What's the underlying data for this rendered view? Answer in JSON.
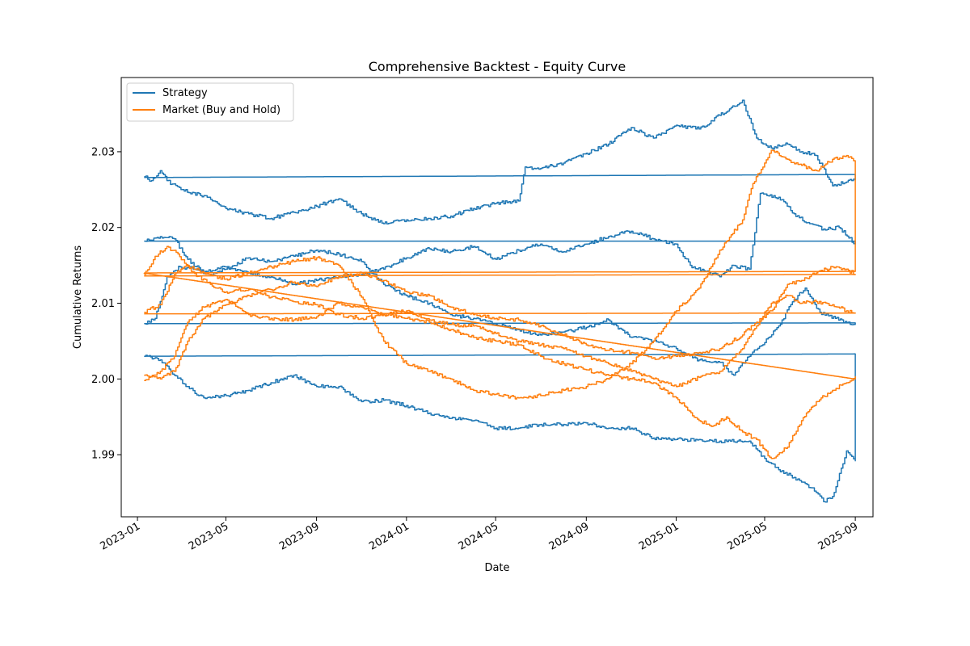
{
  "chart_data": {
    "type": "line",
    "title": "Comprehensive Backtest - Equity Curve",
    "xlabel": "Date",
    "ylabel": "Cumulative Returns",
    "x_range": [
      "2022-12-10",
      "2025-09-25"
    ],
    "ylim": [
      1.9818,
      2.0398
    ],
    "x_ticks": [
      "2023-01",
      "2023-05",
      "2023-09",
      "2024-01",
      "2024-05",
      "2024-09",
      "2025-01",
      "2025-05",
      "2025-09"
    ],
    "y_ticks": [
      1.99,
      2.0,
      2.01,
      2.02,
      2.03
    ],
    "grid": false,
    "legend_position": "upper-left",
    "series": [
      {
        "name": "Strategy",
        "color": "#1f77b4",
        "segments": [
          {
            "x": [
              "2023-01-10",
              "2023-01-20",
              "2023-02-01",
              "2023-02-10",
              "2023-03-01",
              "2023-04-01",
              "2023-05-01",
              "2023-06-01",
              "2023-07-01",
              "2023-08-01",
              "2023-09-01",
              "2023-10-01",
              "2023-11-01",
              "2023-12-01",
              "2024-01-01",
              "2024-02-01",
              "2024-03-01",
              "2024-04-01",
              "2024-05-01",
              "2024-06-01",
              "2024-06-10",
              "2024-07-01",
              "2024-08-01",
              "2024-09-01",
              "2024-10-01",
              "2024-11-01",
              "2024-12-01",
              "2025-01-01",
              "2025-02-01",
              "2025-03-01",
              "2025-04-01",
              "2025-04-20",
              "2025-05-10",
              "2025-06-01",
              "2025-06-20",
              "2025-07-10",
              "2025-08-01",
              "2025-08-20",
              "2025-09-01",
              "2025-09-01",
              "2023-01-10"
            ],
            "y": [
              2.0267,
              2.0262,
              2.0275,
              2.0262,
              2.025,
              2.0242,
              2.0225,
              2.0218,
              2.0212,
              2.022,
              2.0228,
              2.0238,
              2.0218,
              2.0205,
              2.021,
              2.0212,
              2.0215,
              2.0225,
              2.0232,
              2.0235,
              2.028,
              2.0278,
              2.0285,
              2.0298,
              2.031,
              2.0332,
              2.0318,
              2.0335,
              2.033,
              2.0348,
              2.0368,
              2.0318,
              2.0305,
              2.031,
              2.03,
              2.0295,
              2.0255,
              2.026,
              2.0263,
              2.027,
              2.0266
            ]
          },
          {
            "x": [
              "2023-01-10",
              "2023-02-01",
              "2023-02-20",
              "2023-03-10",
              "2023-04-01",
              "2023-05-01",
              "2023-06-01",
              "2023-07-01",
              "2023-08-01",
              "2023-09-01",
              "2023-10-01",
              "2023-11-01",
              "2023-12-01",
              "2024-01-01",
              "2024-02-01",
              "2024-03-01",
              "2024-04-01",
              "2024-05-01",
              "2024-06-01",
              "2024-07-01",
              "2024-08-01",
              "2024-09-01",
              "2024-10-01",
              "2024-11-01",
              "2024-12-01",
              "2025-01-01",
              "2025-01-20",
              "2025-02-10",
              "2025-03-01",
              "2025-03-20",
              "2025-04-10",
              "2025-04-25",
              "2025-05-20",
              "2025-06-10",
              "2025-07-01",
              "2025-07-20",
              "2025-08-10",
              "2025-09-01",
              "2025-09-01",
              "2023-01-10"
            ],
            "y": [
              2.0182,
              2.0188,
              2.0185,
              2.0158,
              2.014,
              2.0148,
              2.014,
              2.0135,
              2.0125,
              2.013,
              2.0135,
              2.0138,
              2.0145,
              2.016,
              2.0172,
              2.0168,
              2.0175,
              2.0158,
              2.017,
              2.0178,
              2.0168,
              2.0178,
              2.0188,
              2.0195,
              2.0185,
              2.0178,
              2.015,
              2.0142,
              2.0135,
              2.015,
              2.0145,
              2.0245,
              2.024,
              2.0218,
              2.0205,
              2.0198,
              2.02,
              2.0178,
              2.0182,
              2.0182
            ]
          },
          {
            "x": [
              "2023-01-10",
              "2023-01-25",
              "2023-02-10",
              "2023-02-28",
              "2023-03-20",
              "2023-04-10",
              "2023-05-01",
              "2023-06-01",
              "2023-07-01",
              "2023-08-01",
              "2023-09-01",
              "2023-10-01",
              "2023-11-01",
              "2023-12-01",
              "2024-01-01",
              "2024-02-01",
              "2024-03-01",
              "2024-04-01",
              "2024-05-01",
              "2024-06-01",
              "2024-07-01",
              "2024-08-01",
              "2024-09-01",
              "2024-10-01",
              "2024-11-01",
              "2024-12-01",
              "2025-01-01",
              "2025-02-01",
              "2025-03-01",
              "2025-03-20",
              "2025-04-10",
              "2025-05-01",
              "2025-05-20",
              "2025-06-10",
              "2025-06-25",
              "2025-07-15",
              "2025-08-05",
              "2025-08-25",
              "2025-09-01",
              "2025-09-01",
              "2023-01-10"
            ],
            "y": [
              2.0073,
              2.008,
              2.0135,
              2.0148,
              2.0145,
              2.0138,
              2.0145,
              2.016,
              2.0155,
              2.0162,
              2.017,
              2.0165,
              2.0155,
              2.0125,
              2.011,
              2.01,
              2.0085,
              2.008,
              2.0072,
              2.0065,
              2.0058,
              2.0062,
              2.0068,
              2.0078,
              2.0055,
              2.005,
              2.004,
              2.0025,
              2.0022,
              2.0005,
              2.003,
              2.0048,
              2.007,
              2.0105,
              2.012,
              2.0088,
              2.008,
              2.0072,
              2.0074,
              2.0074,
              2.0073
            ]
          },
          {
            "x": [
              "2023-01-10",
              "2023-02-01",
              "2023-02-20",
              "2023-03-10",
              "2023-03-25",
              "2023-04-10",
              "2023-05-01",
              "2023-06-01",
              "2023-07-01",
              "2023-08-01",
              "2023-09-01",
              "2023-10-01",
              "2023-11-01",
              "2023-12-01",
              "2024-01-01",
              "2024-02-01",
              "2024-03-01",
              "2024-04-01",
              "2024-05-01",
              "2024-06-01",
              "2024-07-01",
              "2024-08-01",
              "2024-09-01",
              "2024-10-01",
              "2024-11-01",
              "2024-12-01",
              "2025-01-01",
              "2025-02-01",
              "2025-03-01",
              "2025-03-25",
              "2025-04-10",
              "2025-05-01",
              "2025-05-20",
              "2025-06-10",
              "2025-06-25",
              "2025-07-10",
              "2025-07-20",
              "2025-08-01",
              "2025-08-20",
              "2025-09-01",
              "2025-09-01",
              "2023-01-10"
            ],
            "y": [
              2.003,
              2.0025,
              2.0005,
              1.999,
              1.9978,
              1.9975,
              1.9978,
              1.9985,
              1.9995,
              2.0005,
              1.999,
              1.999,
              1.997,
              1.9972,
              1.9965,
              1.9955,
              1.9948,
              1.9945,
              1.9935,
              1.9935,
              1.994,
              1.994,
              1.9942,
              1.9935,
              1.9935,
              1.9922,
              1.992,
              1.992,
              1.9918,
              1.9918,
              1.9918,
              1.9895,
              1.988,
              1.987,
              1.9862,
              1.985,
              1.9838,
              1.9845,
              1.9905,
              1.9892,
              2.0033,
              2.003
            ]
          }
        ]
      },
      {
        "name": "Market (Buy and Hold)",
        "color": "#ff7f0e",
        "segments": [
          {
            "x": [
              "2023-01-10",
              "2023-01-25",
              "2023-02-10",
              "2023-02-25",
              "2023-03-15",
              "2023-04-10",
              "2023-05-01",
              "2023-06-01",
              "2023-07-01",
              "2023-08-01",
              "2023-09-01",
              "2023-10-01",
              "2023-11-01",
              "2023-12-01",
              "2024-01-01",
              "2024-02-01",
              "2024-03-01",
              "2024-04-01",
              "2024-05-01",
              "2024-06-01",
              "2024-07-01",
              "2024-08-01",
              "2024-09-01",
              "2024-10-01",
              "2024-11-01",
              "2024-12-01",
              "2025-01-01",
              "2025-02-01",
              "2025-02-20",
              "2025-03-10",
              "2025-04-01",
              "2025-04-20",
              "2025-05-10",
              "2025-06-01",
              "2025-06-20",
              "2025-07-10",
              "2025-08-01",
              "2025-08-20",
              "2025-09-01",
              "2025-09-01",
              "2023-01-10"
            ],
            "y": [
              2.0138,
              2.0162,
              2.0175,
              2.0165,
              2.0142,
              2.0125,
              2.0115,
              2.0118,
              2.0108,
              2.0102,
              2.0098,
              2.0085,
              2.008,
              2.0085,
              2.008,
              2.0075,
              2.0065,
              2.0055,
              2.005,
              2.0045,
              2.003,
              2.002,
              2.0012,
              2.0005,
              2.0,
              1.9995,
              1.9975,
              1.9945,
              1.9938,
              1.995,
              1.993,
              1.992,
              1.9895,
              1.991,
              1.9945,
              1.997,
              1.9985,
              1.9995,
              2.0003,
              2.0,
              2.014
            ]
          },
          {
            "x": [
              "2023-01-10",
              "2023-02-01",
              "2023-02-20",
              "2023-03-10",
              "2023-04-01",
              "2023-05-01",
              "2023-06-01",
              "2023-07-01",
              "2023-08-01",
              "2023-09-01",
              "2023-10-01",
              "2023-11-01",
              "2023-12-01",
              "2024-01-01",
              "2024-02-01",
              "2024-03-01",
              "2024-04-01",
              "2024-05-01",
              "2024-06-01",
              "2024-07-01",
              "2024-08-01",
              "2024-09-01",
              "2024-10-01",
              "2024-11-01",
              "2024-12-01",
              "2025-01-01",
              "2025-02-01",
              "2025-03-01",
              "2025-04-01",
              "2025-04-15",
              "2025-05-10",
              "2025-06-01",
              "2025-06-20",
              "2025-07-10",
              "2025-08-01",
              "2025-08-20",
              "2025-09-01",
              "2025-09-01",
              "2023-01-10"
            ],
            "y": [
              2.0088,
              2.0098,
              2.0138,
              2.015,
              2.014,
              2.0132,
              2.014,
              2.0148,
              2.0155,
              2.016,
              2.015,
              2.0108,
              2.005,
              2.002,
              2.001,
              2.0,
              1.9985,
              1.998,
              1.9975,
              1.9978,
              1.9985,
              1.999,
              2.0,
              2.002,
              2.005,
              2.009,
              2.012,
              2.017,
              2.021,
              2.0258,
              2.0302,
              2.029,
              2.0282,
              2.0275,
              2.029,
              2.0295,
              2.0288,
              2.0142,
              2.014
            ]
          },
          {
            "x": [
              "2023-01-10",
              "2023-02-01",
              "2023-02-20",
              "2023-03-10",
              "2023-04-01",
              "2023-05-01",
              "2023-06-01",
              "2023-07-01",
              "2023-08-01",
              "2023-09-01",
              "2023-10-01",
              "2023-11-01",
              "2023-12-01",
              "2024-01-01",
              "2024-02-01",
              "2024-03-01",
              "2024-04-01",
              "2024-05-01",
              "2024-06-01",
              "2024-07-01",
              "2024-08-01",
              "2024-09-01",
              "2024-10-01",
              "2024-11-01",
              "2024-12-01",
              "2025-01-01",
              "2025-02-01",
              "2025-03-01",
              "2025-04-01",
              "2025-04-20",
              "2025-05-10",
              "2025-06-01",
              "2025-06-20",
              "2025-07-10",
              "2025-08-01",
              "2025-08-20",
              "2025-09-01",
              "2025-09-01",
              "2023-01-10"
            ],
            "y": [
              1.9998,
              2.001,
              2.003,
              2.0075,
              2.0095,
              2.0105,
              2.0085,
              2.008,
              2.0078,
              2.0082,
              2.01,
              2.0095,
              2.0085,
              2.009,
              2.0078,
              2.0072,
              2.007,
              2.006,
              2.005,
              2.0045,
              2.004,
              2.003,
              2.002,
              2.001,
              2.0,
              1.999,
              2.0002,
              2.001,
              2.004,
              2.007,
              2.01,
              2.011,
              2.01,
              2.0102,
              2.0098,
              2.009,
              2.0087,
              2.0087,
              2.0086
            ]
          },
          {
            "x": [
              "2023-01-10",
              "2023-02-01",
              "2023-02-20",
              "2023-03-10",
              "2023-04-01",
              "2023-05-01",
              "2023-06-01",
              "2023-07-01",
              "2023-08-01",
              "2023-09-01",
              "2023-10-01",
              "2023-11-01",
              "2023-12-01",
              "2024-01-01",
              "2024-02-01",
              "2024-03-01",
              "2024-04-01",
              "2024-05-01",
              "2024-06-01",
              "2024-07-01",
              "2024-08-01",
              "2024-09-01",
              "2024-10-01",
              "2024-11-01",
              "2024-12-01",
              "2025-01-01",
              "2025-02-01",
              "2025-03-01",
              "2025-04-01",
              "2025-04-20",
              "2025-05-10",
              "2025-06-01",
              "2025-06-20",
              "2025-07-10",
              "2025-08-01",
              "2025-08-20",
              "2025-09-01",
              "2025-09-01",
              "2023-01-10"
            ],
            "y": [
              2.0005,
              2.0,
              2.001,
              2.005,
              2.008,
              2.0098,
              2.011,
              2.0118,
              2.0128,
              2.0122,
              2.0135,
              2.014,
              2.013,
              2.0115,
              2.011,
              2.0095,
              2.0085,
              2.008,
              2.0078,
              2.007,
              2.0058,
              2.0045,
              2.0038,
              2.0035,
              2.0028,
              2.003,
              2.0035,
              2.004,
              2.0058,
              2.0075,
              2.009,
              2.0125,
              2.013,
              2.014,
              2.0148,
              2.0145,
              2.0138,
              2.0138,
              2.0136
            ]
          }
        ]
      }
    ]
  }
}
